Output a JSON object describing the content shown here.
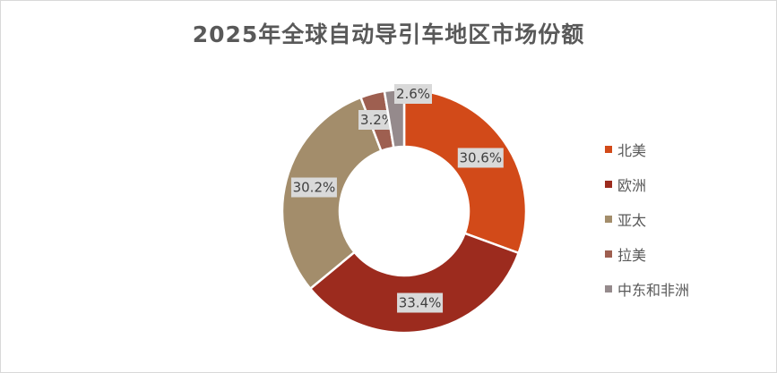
{
  "chart_data": {
    "type": "pie",
    "variant": "donut",
    "title": "2025年全球自动导引车地区市场份额",
    "categories": [
      "北美",
      "欧洲",
      "亚太",
      "拉美",
      "中东和非洲"
    ],
    "values": [
      30.6,
      33.4,
      30.2,
      3.2,
      2.6
    ],
    "labels": [
      "30.6%",
      "33.4%",
      "30.2%",
      "3.2%",
      "2.6%"
    ],
    "colors": [
      "#D24A19",
      "#9C2B1E",
      "#A38D6B",
      "#9E5F50",
      "#958A8C"
    ],
    "legend": "right"
  }
}
